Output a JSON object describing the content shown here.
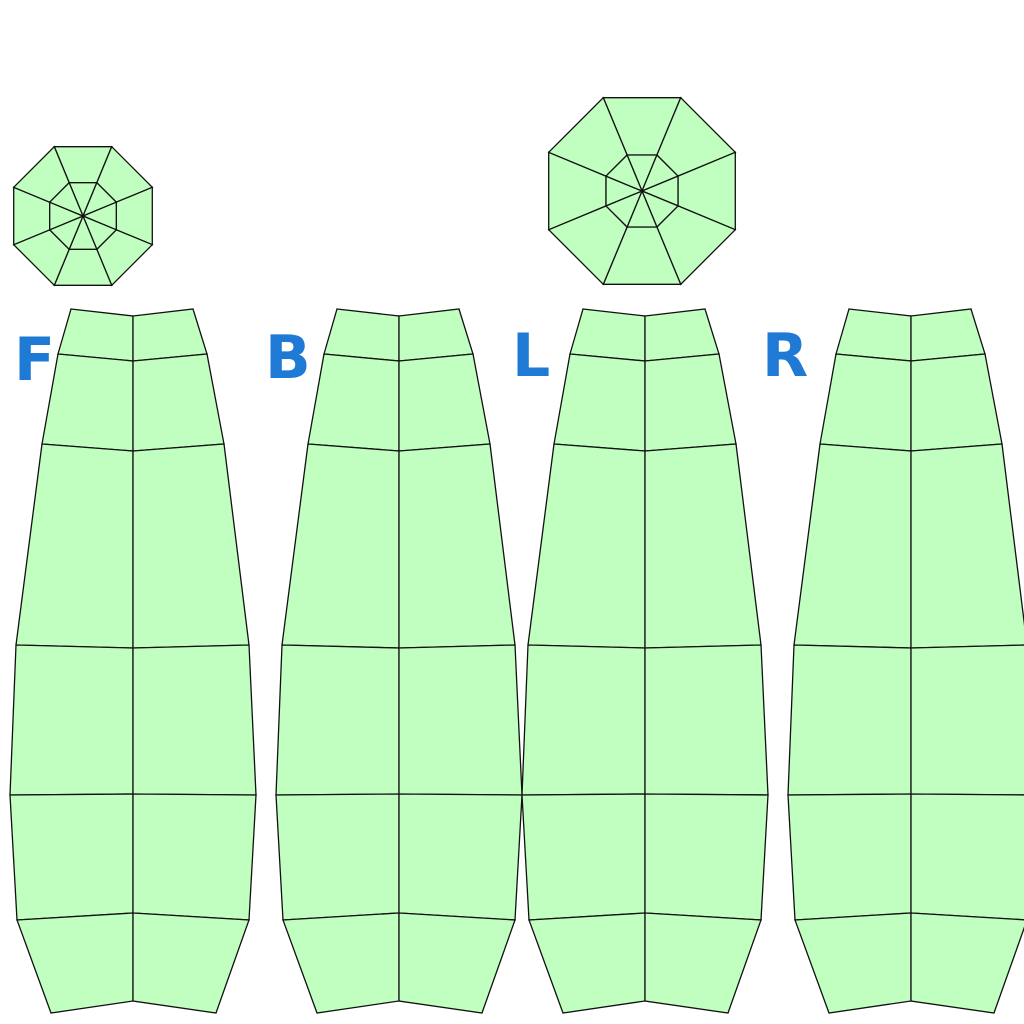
{
  "colors": {
    "face_fill": "#c0ffc0",
    "edge": "#111111",
    "label": "#1f7ad6",
    "background": "#ffffff"
  },
  "panels": [
    {
      "id": "front",
      "label": "F"
    },
    {
      "id": "back",
      "label": "B"
    },
    {
      "id": "left",
      "label": "L"
    },
    {
      "id": "right",
      "label": "R"
    }
  ],
  "caps": [
    {
      "id": "cap-small",
      "sides": 8
    },
    {
      "id": "cap-large",
      "sides": 8
    }
  ]
}
